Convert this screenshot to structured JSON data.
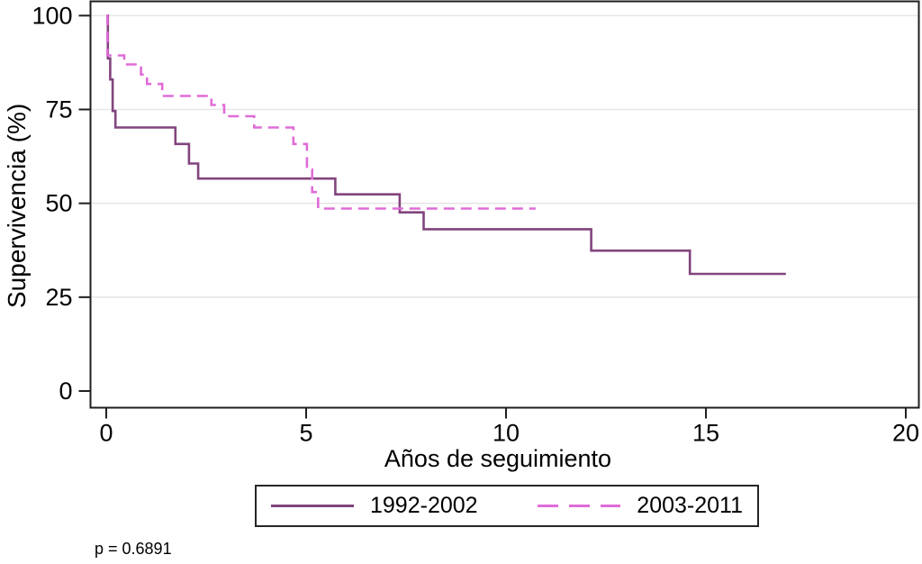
{
  "figure": {
    "p_value_text": "p = 0.6891",
    "colors": {
      "series_1992_2002": "#82447e",
      "series_2003_2011": "#e06cd8",
      "gridline": "#e7e7e7",
      "axis": "#1f1f1f"
    }
  },
  "legend": {
    "entries": [
      {
        "label": "1992-2002",
        "style": "solid",
        "color": "#82447e"
      },
      {
        "label": "2003-2011",
        "style": "dashed",
        "color": "#e06cd8"
      }
    ]
  },
  "chart_data": {
    "type": "line",
    "subtype": "kaplan-meier-step",
    "title": "",
    "xlabel": "Años de seguimiento",
    "ylabel": "Supervivencia (%)",
    "xlim": [
      0,
      20
    ],
    "ylim": [
      0,
      100
    ],
    "xticks": [
      0,
      5,
      10,
      15,
      20
    ],
    "yticks": [
      0,
      25,
      50,
      75,
      100
    ],
    "grid": "horizontal",
    "legend_position": "bottom-center",
    "annotation": "p = 0.6891",
    "series": [
      {
        "name": "1992-2002",
        "style": "solid",
        "color": "#82447e",
        "steps_x_percent": [
          [
            0,
            100
          ],
          [
            0.04,
            88.6
          ],
          [
            0.1,
            83.0
          ],
          [
            0.16,
            74.6
          ],
          [
            0.23,
            70.2
          ],
          [
            1.73,
            65.8
          ],
          [
            2.07,
            60.6
          ],
          [
            2.3,
            56.6
          ],
          [
            5.73,
            52.4
          ],
          [
            7.34,
            47.6
          ],
          [
            7.94,
            43.1
          ],
          [
            12.13,
            37.4
          ],
          [
            14.6,
            31.2
          ]
        ],
        "end_x": 17.0
      },
      {
        "name": "2003-2011",
        "style": "dashed",
        "color": "#e06cd8",
        "steps_x_percent": [
          [
            0,
            100
          ],
          [
            0.03,
            89.4
          ],
          [
            0.45,
            87.0
          ],
          [
            0.87,
            84.3
          ],
          [
            1.02,
            81.8
          ],
          [
            1.4,
            78.6
          ],
          [
            2.63,
            76.2
          ],
          [
            2.95,
            73.2
          ],
          [
            3.7,
            70.2
          ],
          [
            4.68,
            65.8
          ],
          [
            5.02,
            59.0
          ],
          [
            5.15,
            53.0
          ],
          [
            5.3,
            48.6
          ]
        ],
        "end_x": 10.74
      }
    ]
  }
}
